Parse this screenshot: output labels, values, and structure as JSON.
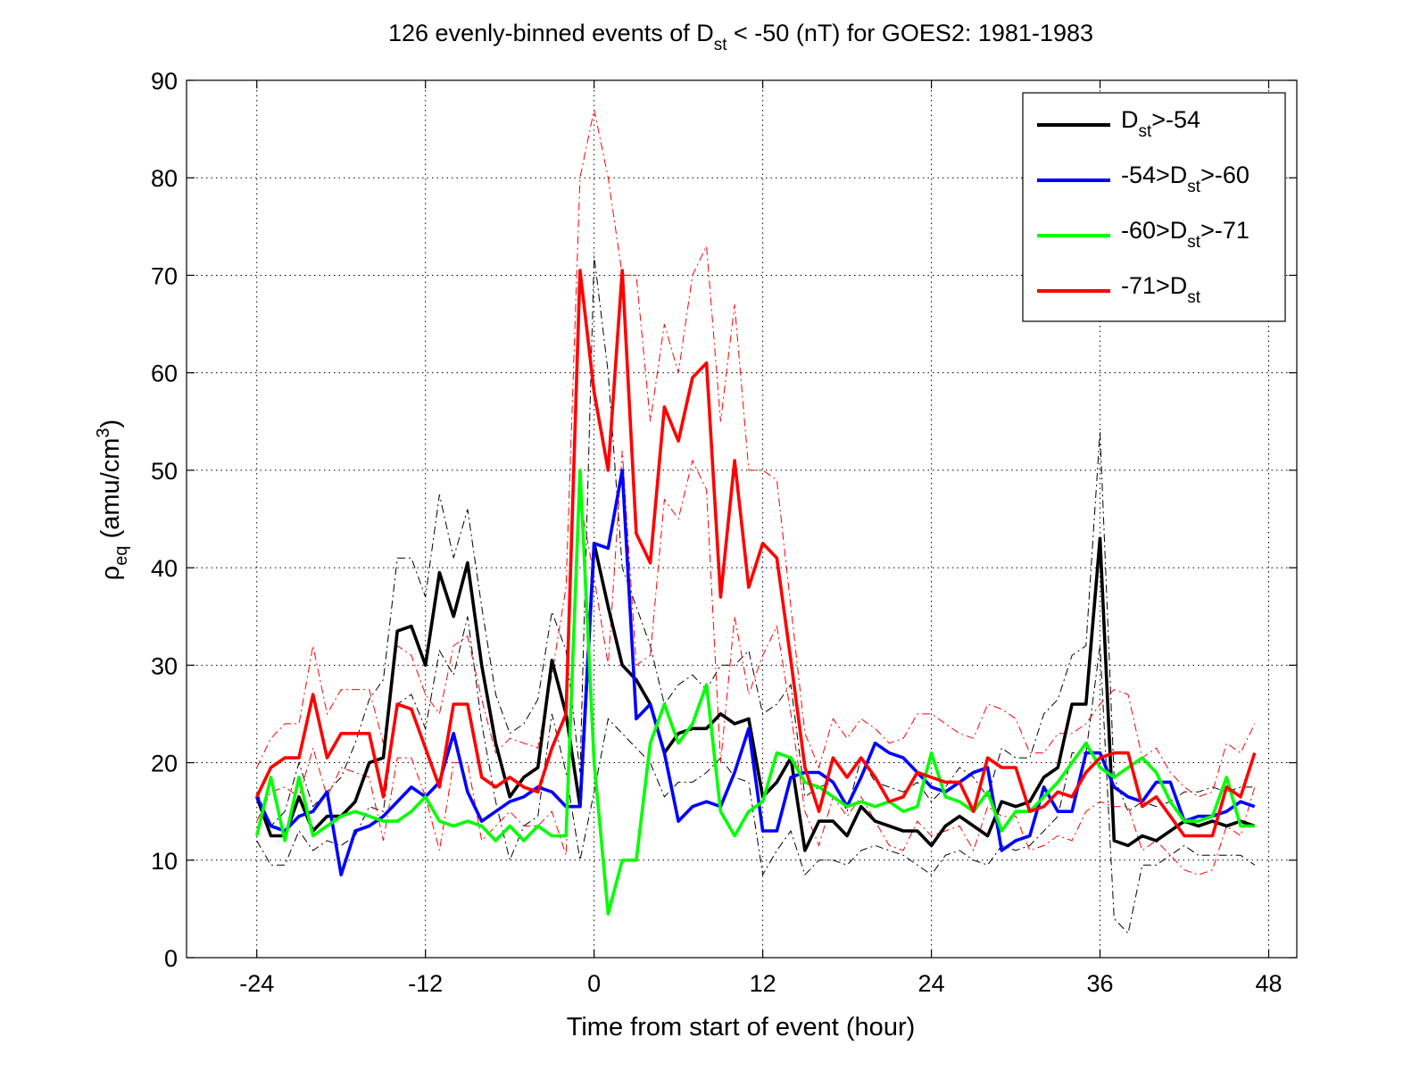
{
  "chart_data": {
    "type": "line",
    "title": {
      "prefix": "126 evenly-binned events of D",
      "sub": "st",
      "suffix": " < -50 (nT) for GOES2: 1981-1983"
    },
    "xlabel": "Time from start of event (hour)",
    "ylabel": {
      "main": "ρ",
      "sub": "eq",
      "rest": " (amu/cm",
      "sup": "3",
      "end": ")"
    },
    "xlim": [
      -29,
      50
    ],
    "ylim": [
      0,
      90
    ],
    "xticks": [
      -24,
      -12,
      0,
      12,
      24,
      36,
      48
    ],
    "xtick_labels": [
      "-24",
      "-12",
      "0",
      "12",
      "24",
      "36",
      "48"
    ],
    "yticks": [
      0,
      10,
      20,
      30,
      40,
      50,
      60,
      70,
      80,
      90
    ],
    "ytick_labels": [
      "0",
      "10",
      "20",
      "30",
      "40",
      "50",
      "60",
      "70",
      "80",
      "90"
    ],
    "grid": true,
    "legend_position": "top-right",
    "x": [
      -24,
      -23,
      -22,
      -21,
      -20,
      -19,
      -18,
      -17,
      -16,
      -15,
      -14,
      -13,
      -12,
      -11,
      -10,
      -9,
      -8,
      -7,
      -6,
      -5,
      -4,
      -3,
      -2,
      -1,
      0,
      1,
      2,
      3,
      4,
      5,
      6,
      7,
      8,
      9,
      10,
      11,
      12,
      13,
      14,
      15,
      16,
      17,
      18,
      19,
      20,
      21,
      22,
      23,
      24,
      25,
      26,
      27,
      28,
      29,
      30,
      31,
      32,
      33,
      34,
      35,
      36,
      37,
      38,
      39,
      40,
      41,
      42,
      43,
      44,
      45,
      46,
      47
    ],
    "series": [
      {
        "color": "#000000",
        "legend": {
          "pre": "D",
          "sub": "st",
          "post": ">-54",
          "pre2": "",
          "sub2": "",
          "post2": ""
        },
        "values": [
          16.5,
          12.5,
          12.5,
          16.5,
          13.0,
          14.5,
          14.5,
          16.0,
          20.0,
          20.5,
          33.5,
          34.0,
          30.0,
          39.5,
          35.0,
          40.5,
          30.0,
          22.0,
          16.5,
          18.5,
          19.5,
          30.5,
          25.0,
          15.5,
          42.5,
          36.0,
          30.0,
          28.5,
          26.0,
          21.0,
          23.0,
          23.5,
          23.5,
          25.0,
          24.0,
          24.5,
          16.5,
          18.0,
          20.5,
          11.0,
          14.0,
          14.0,
          12.5,
          15.5,
          14.0,
          13.5,
          13.0,
          13.0,
          11.5,
          13.5,
          14.5,
          13.5,
          12.5,
          16.0,
          15.5,
          16.0,
          18.5,
          19.5,
          26.0,
          26.0,
          43.0,
          12.0,
          11.5,
          12.5,
          12.0,
          13.0,
          14.0,
          13.5,
          14.0,
          13.5,
          14.0,
          13.5
        ],
        "upper": [
          17.0,
          13.5,
          15.0,
          20.0,
          15.5,
          17.0,
          18.5,
          22.0,
          26.5,
          28.5,
          41.0,
          41.0,
          37.0,
          47.5,
          41.0,
          46.0,
          36.0,
          27.0,
          23.0,
          24.0,
          26.5,
          35.5,
          31.5,
          19.0,
          72.0,
          60.0,
          40.0,
          36.0,
          32.0,
          26.0,
          28.0,
          29.0,
          27.5,
          30.0,
          30.0,
          31.5,
          25.0,
          26.0,
          28.0,
          16.5,
          17.5,
          18.0,
          15.0,
          20.5,
          18.0,
          17.5,
          17.0,
          18.0,
          16.0,
          17.5,
          19.5,
          18.5,
          16.5,
          21.5,
          20.5,
          20.5,
          25.0,
          26.5,
          31.0,
          32.0,
          54.0,
          18.5,
          15.0,
          16.0,
          15.5,
          16.0,
          17.0,
          17.0,
          17.5,
          17.0,
          17.5,
          17.5
        ],
        "lower": [
          12.0,
          9.5,
          9.5,
          13.0,
          11.0,
          12.0,
          11.5,
          12.5,
          15.5,
          15.0,
          26.0,
          27.0,
          23.5,
          31.5,
          29.0,
          35.0,
          24.0,
          16.0,
          10.0,
          13.5,
          14.5,
          25.0,
          19.0,
          10.0,
          17.0,
          24.5,
          23.0,
          21.5,
          20.0,
          16.5,
          18.0,
          18.0,
          19.0,
          20.5,
          18.5,
          18.0,
          8.5,
          11.0,
          13.0,
          8.5,
          10.0,
          10.0,
          9.5,
          11.0,
          11.5,
          11.0,
          10.5,
          9.5,
          8.5,
          10.5,
          11.0,
          10.0,
          9.5,
          11.5,
          11.0,
          11.5,
          13.0,
          14.5,
          21.0,
          21.0,
          32.0,
          4.0,
          2.5,
          9.5,
          9.5,
          10.5,
          11.5,
          10.5,
          10.5,
          10.5,
          10.5,
          9.5
        ]
      },
      {
        "color": "#0000ff",
        "legend": {
          "pre": "-54>D",
          "sub": "st",
          "post": ">-60",
          "pre2": "",
          "sub2": "",
          "post2": ""
        },
        "values": [
          16.5,
          13.5,
          13.0,
          14.5,
          15.0,
          17.0,
          8.5,
          13.0,
          13.5,
          14.5,
          16.0,
          17.5,
          16.5,
          18.0,
          23.0,
          17.0,
          14.0,
          15.0,
          16.0,
          16.5,
          17.5,
          17.0,
          15.5,
          15.5,
          42.5,
          42.0,
          50.0,
          24.5,
          26.0,
          21.0,
          14.0,
          15.5,
          16.0,
          15.5,
          19.0,
          23.5,
          13.0,
          13.0,
          18.5,
          19.0,
          19.0,
          18.0,
          15.5,
          18.5,
          22.0,
          21.0,
          20.5,
          19.0,
          17.5,
          17.0,
          18.0,
          19.0,
          19.5,
          11.0,
          12.0,
          12.5,
          17.5,
          15.0,
          15.0,
          21.0,
          21.0,
          17.5,
          16.5,
          16.0,
          18.0,
          18.0,
          14.0,
          14.5,
          14.5,
          15.0,
          16.0,
          15.5
        ],
        "upper": null,
        "lower": null
      },
      {
        "color": "#00ff00",
        "legend": {
          "pre": "-60>D",
          "sub": "st",
          "post": ">-71",
          "pre2": "",
          "sub2": "",
          "post2": ""
        },
        "values": [
          12.5,
          18.5,
          12.0,
          18.5,
          12.5,
          13.5,
          14.5,
          15.0,
          14.5,
          14.0,
          14.0,
          15.0,
          16.5,
          14.0,
          13.5,
          14.0,
          13.5,
          12.0,
          13.5,
          12.0,
          13.5,
          12.5,
          12.5,
          50.0,
          20.0,
          4.5,
          10.0,
          10.0,
          22.0,
          26.0,
          22.0,
          24.0,
          28.0,
          15.0,
          12.5,
          15.0,
          16.0,
          21.0,
          20.5,
          18.0,
          17.5,
          16.5,
          15.5,
          16.0,
          15.5,
          16.0,
          15.0,
          15.5,
          21.0,
          16.5,
          16.0,
          15.0,
          17.0,
          13.0,
          15.0,
          15.0,
          16.5,
          18.0,
          20.0,
          22.0,
          19.5,
          18.5,
          19.5,
          20.5,
          19.0,
          16.0,
          14.0,
          14.0,
          14.5,
          18.5,
          13.5,
          13.5
        ],
        "upper": null,
        "lower": null
      },
      {
        "color": "#ff0000",
        "legend": {
          "pre": "-71>D",
          "sub": "st",
          "post": "",
          "pre2": "",
          "sub2": "",
          "post2": ""
        },
        "values": [
          16.5,
          19.5,
          20.5,
          20.5,
          27.0,
          20.5,
          23.0,
          23.0,
          23.0,
          16.5,
          26.0,
          25.5,
          21.5,
          17.5,
          26.0,
          26.0,
          18.5,
          17.5,
          18.5,
          17.5,
          17.0,
          21.5,
          25.0,
          70.5,
          58.0,
          50.0,
          70.5,
          43.5,
          40.5,
          56.5,
          53.0,
          59.5,
          61.0,
          37.0,
          51.0,
          38.0,
          42.5,
          41.0,
          30.5,
          19.5,
          15.0,
          20.5,
          18.5,
          20.5,
          18.5,
          16.0,
          16.5,
          19.0,
          18.5,
          18.0,
          18.0,
          15.0,
          20.5,
          19.5,
          19.5,
          15.0,
          15.5,
          17.0,
          16.5,
          19.0,
          20.5,
          21.0,
          21.0,
          15.5,
          16.5,
          14.5,
          12.5,
          12.5,
          12.5,
          17.5,
          16.5,
          21.0
        ],
        "upper": [
          19.5,
          22.5,
          24.0,
          24.0,
          32.0,
          25.0,
          27.5,
          27.5,
          27.5,
          22.0,
          32.0,
          31.0,
          27.0,
          25.0,
          32.0,
          33.0,
          26.5,
          21.0,
          22.5,
          22.0,
          21.5,
          29.0,
          38.0,
          80.0,
          87.0,
          80.0,
          70.0,
          70.0,
          55.0,
          65.0,
          60.0,
          70.0,
          73.0,
          55.0,
          67.0,
          50.0,
          50.0,
          49.0,
          36.0,
          23.0,
          19.5,
          24.5,
          22.5,
          24.5,
          23.5,
          22.0,
          22.5,
          25.0,
          25.0,
          24.0,
          23.0,
          22.5,
          26.0,
          25.5,
          24.5,
          21.0,
          21.0,
          23.0,
          23.0,
          24.0,
          26.0,
          27.5,
          27.0,
          20.5,
          21.5,
          19.0,
          17.5,
          16.5,
          17.0,
          22.0,
          21.0,
          24.0
        ],
        "lower": [
          14.0,
          17.0,
          17.5,
          16.5,
          21.5,
          16.5,
          19.5,
          19.0,
          18.5,
          12.0,
          20.5,
          20.5,
          16.5,
          11.0,
          20.0,
          20.0,
          12.0,
          13.5,
          15.0,
          13.5,
          13.5,
          15.0,
          10.5,
          47.0,
          39.0,
          30.0,
          52.0,
          30.0,
          31.0,
          47.0,
          45.0,
          51.0,
          48.0,
          20.0,
          35.0,
          27.0,
          31.0,
          34.0,
          25.0,
          15.0,
          11.5,
          16.5,
          14.5,
          16.5,
          14.0,
          11.5,
          11.0,
          14.0,
          12.5,
          13.0,
          13.5,
          11.0,
          15.5,
          14.5,
          14.5,
          11.0,
          11.5,
          12.5,
          12.0,
          15.0,
          16.0,
          15.5,
          15.5,
          11.0,
          12.0,
          10.5,
          9.0,
          8.5,
          9.0,
          13.5,
          12.5,
          17.5
        ]
      }
    ]
  }
}
